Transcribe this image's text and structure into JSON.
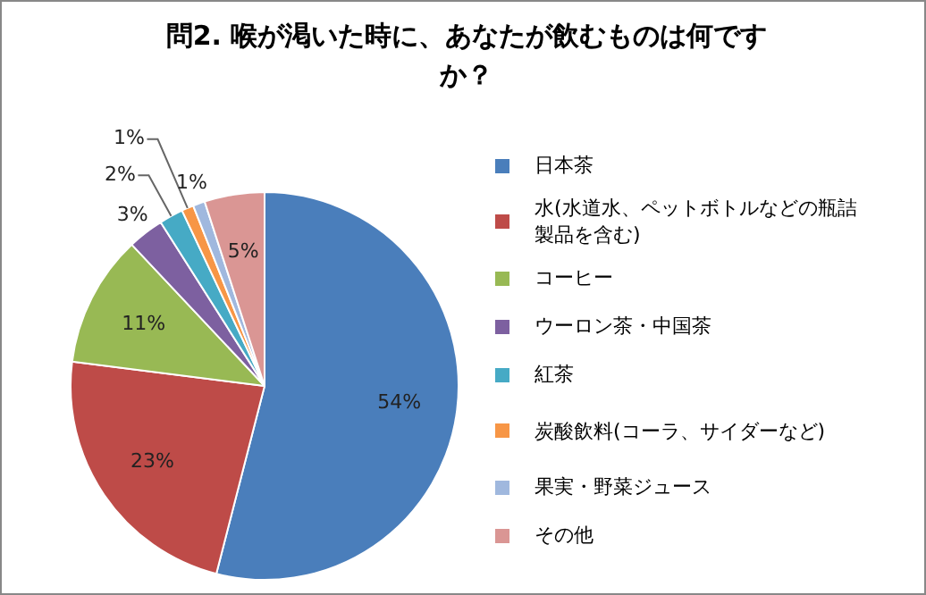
{
  "chart_data": {
    "type": "pie",
    "title": "問2. 喉が渇いた時に、あなたが飲むものは何ですか？",
    "categories": [
      "日本茶",
      "水(水道水、ペットボトルなどの瓶詰製品を含む)",
      "コーヒー",
      "ウーロン茶・中国茶",
      "紅茶",
      "炭酸飲料(コーラ、サイダーなど)",
      "果実・野菜ジュース",
      "その他"
    ],
    "values": [
      54,
      23,
      11,
      3,
      2,
      1,
      1,
      5
    ],
    "colors": [
      "#4a7ebb",
      "#be4b48",
      "#98b954",
      "#7d60a0",
      "#46aac5",
      "#f79646",
      "#a0b8de",
      "#da9694"
    ],
    "value_labels": [
      "54%",
      "23%",
      "11%",
      "3%",
      "2%",
      "1%",
      "1%",
      "5%"
    ],
    "legend": "right"
  }
}
